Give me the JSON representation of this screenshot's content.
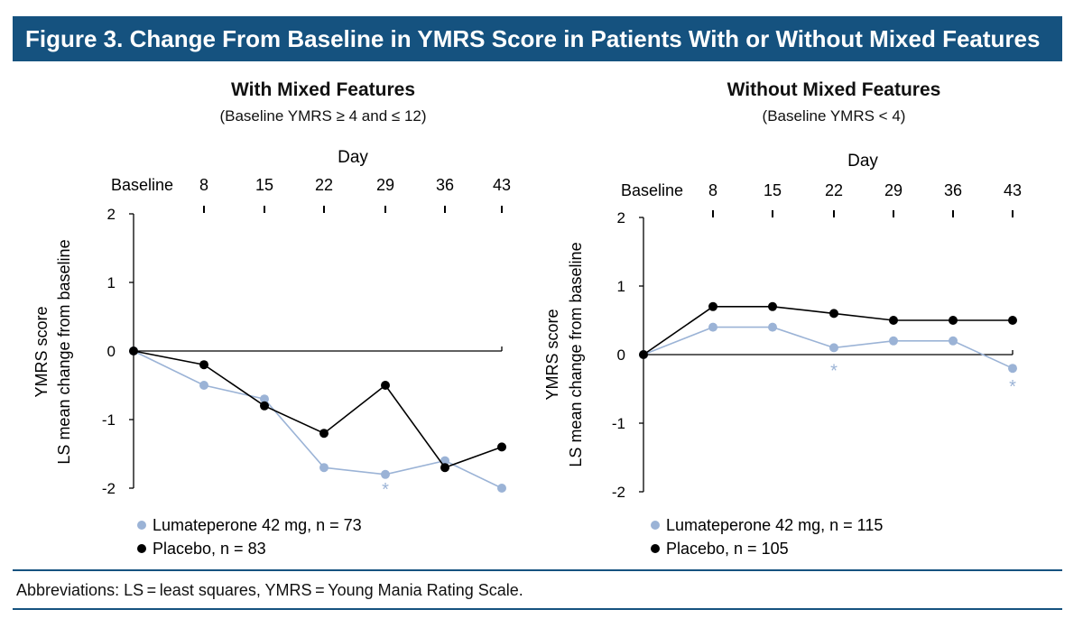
{
  "figure": {
    "title": "Figure 3. Change From Baseline in YMRS Score in Patients With or Without Mixed Features",
    "footnote": "Abbreviations: LS = least squares, YMRS = Young Mania Rating Scale."
  },
  "chart_data": [
    {
      "type": "line",
      "title": "With Mixed Features",
      "subtitle": "(Baseline YMRS ≥ 4 and ≤ 12)",
      "xlabel": "Day",
      "ylabel": [
        "YMRS score",
        "LS mean change from baseline"
      ],
      "categories": [
        "Baseline",
        "8",
        "15",
        "22",
        "29",
        "36",
        "43"
      ],
      "ylim": [
        -2,
        2
      ],
      "yticks": [
        2,
        1,
        0,
        -1,
        -2
      ],
      "ytick_labels": [
        "2",
        "1",
        "0",
        "-1",
        "-2"
      ],
      "grid": false,
      "legend_position": "bottom-left",
      "series": [
        {
          "name": "Lumateperone 42 mg, n = 73",
          "color": "#9bb3d6",
          "values": [
            0,
            -0.5,
            -0.7,
            -1.7,
            -1.8,
            -1.6,
            -2.0
          ]
        },
        {
          "name": "Placebo, n = 83",
          "color": "#000000",
          "values": [
            0,
            -0.2,
            -0.8,
            -1.2,
            -0.5,
            -1.7,
            -1.4
          ]
        }
      ],
      "annotations": [
        {
          "text": "*",
          "category": "29",
          "y": -2.0,
          "color": "#9bb3d6"
        }
      ]
    },
    {
      "type": "line",
      "title": "Without Mixed Features",
      "subtitle": "(Baseline YMRS < 4)",
      "xlabel": "Day",
      "ylabel": [
        "YMRS score",
        "LS mean change from baseline"
      ],
      "categories": [
        "Baseline",
        "8",
        "15",
        "22",
        "29",
        "36",
        "43"
      ],
      "ylim": [
        -2,
        2
      ],
      "yticks": [
        2,
        1,
        0,
        -1,
        -2
      ],
      "ytick_labels": [
        "2",
        "1",
        "0",
        "-1",
        "-2"
      ],
      "grid": false,
      "legend_position": "bottom-left",
      "series": [
        {
          "name": "Lumateperone 42 mg, n = 115",
          "color": "#9bb3d6",
          "values": [
            0,
            0.4,
            0.4,
            0.1,
            0.2,
            0.2,
            -0.2
          ]
        },
        {
          "name": "Placebo, n = 105",
          "color": "#000000",
          "values": [
            0,
            0.7,
            0.7,
            0.6,
            0.5,
            0.5,
            0.5
          ]
        }
      ],
      "annotations": [
        {
          "text": "*",
          "category": "22",
          "y": -0.22,
          "color": "#9bb3d6"
        },
        {
          "text": "*",
          "category": "43",
          "y": -0.45,
          "color": "#9bb3d6"
        }
      ]
    }
  ]
}
